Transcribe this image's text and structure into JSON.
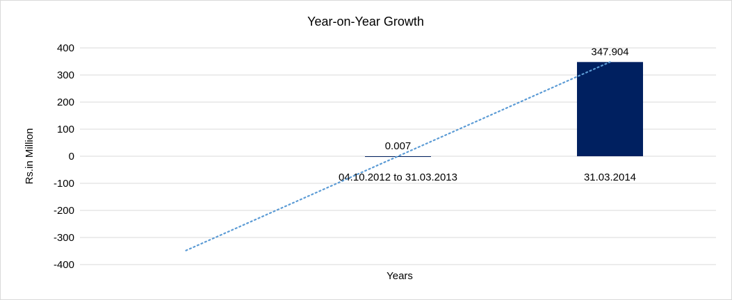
{
  "chart_data": {
    "type": "bar",
    "title": "Year-on-Year Growth",
    "xlabel": "Years",
    "ylabel": "Rs.in Million",
    "categories": [
      "",
      "04.10.2012 to 31.03.2013",
      "31.03.2014"
    ],
    "values": [
      null,
      0.007,
      347.904
    ],
    "data_labels": [
      "",
      "0.007",
      "347.904"
    ],
    "ylim": [
      -400,
      400
    ],
    "yticks": [
      400,
      300,
      200,
      100,
      0,
      -100,
      -200,
      -300,
      -400
    ],
    "grid": true,
    "legend": "none",
    "trendline": {
      "type": "linear",
      "style": "dotted",
      "start": -348,
      "end": 348
    },
    "colors": {
      "bar": "#002060",
      "trendline": "#5b9bd5",
      "grid": "#d9d9d9"
    }
  }
}
